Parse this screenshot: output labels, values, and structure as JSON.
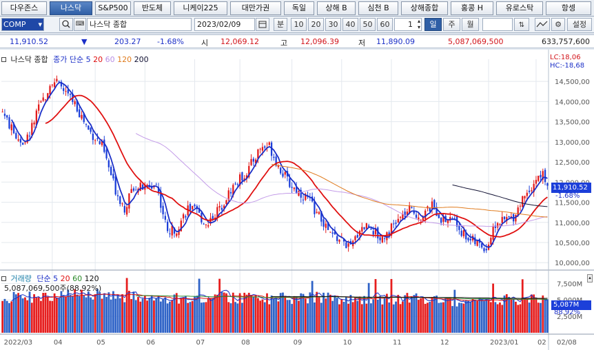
{
  "tabs": [
    {
      "label": "다우존스",
      "active": false
    },
    {
      "label": "나스닥",
      "active": true
    },
    {
      "label": "S&P500",
      "active": false
    },
    {
      "label": "반도체",
      "active": false
    },
    {
      "label": "니케이225",
      "active": false
    },
    {
      "label": "대만가권",
      "active": false
    },
    {
      "label": "독일",
      "active": false
    },
    {
      "label": "상해 B",
      "active": false
    },
    {
      "label": "심천 B",
      "active": false
    },
    {
      "label": "상해종합",
      "active": false
    },
    {
      "label": "홍콩 H",
      "active": false
    },
    {
      "label": "유로스탁",
      "active": false
    },
    {
      "label": "항셍",
      "active": false
    }
  ],
  "toolbar": {
    "symbol_code": "COMP",
    "search_icon": "search-icon",
    "symbol_name": "나스닥 종합",
    "date": "2023/02/09",
    "calendar_icon": "calendar-icon",
    "unit_minute": "분",
    "minutes": [
      "10",
      "20",
      "30",
      "40",
      "50",
      "60"
    ],
    "count": "1",
    "periods": [
      {
        "label": "일",
        "selected": true
      },
      {
        "label": "주",
        "selected": false
      },
      {
        "label": "월",
        "selected": false
      }
    ],
    "settings_label": "설정"
  },
  "quote": {
    "price": "11,910.52",
    "change_arrow": "▼",
    "change": "203.27",
    "change_pct": "-1.68%",
    "open_label": "시",
    "open": "12,069.12",
    "high_label": "고",
    "high": "12,096.39",
    "low_label": "저",
    "low": "11,890.09",
    "volume": "5,087,069,500",
    "amount": "633,757,600"
  },
  "legend": {
    "name": "나스닥 종합",
    "ma_label": "종가 단순 5",
    "ma_periods": [
      "20",
      "60",
      "120",
      "200"
    ],
    "lc": "LC:18,06",
    "hc": "HC:-18,68",
    "last_price_tag": "11,910.52",
    "last_pct_tag": "-1.68%"
  },
  "volume_legend": {
    "title": "거래량",
    "ma_label": "단순 5",
    "ma_periods": [
      "20",
      "60",
      "120"
    ],
    "value_line": "5,087,069,500주(88,92%)",
    "tag_value": "5,087M",
    "tag_pct": "88.92%"
  },
  "colors": {
    "up": "#e31b1b",
    "down": "#1c3fd9",
    "ma5": "#1b2fc7",
    "ma20": "#e01010",
    "ma60": "#c39be8",
    "ma120": "#e07b1d",
    "ma200": "#111133",
    "vol_up": "#e61e1e",
    "vol_down": "#2f63c7"
  },
  "chart_data": {
    "type": "candlestick",
    "title": "나스닥 종합",
    "y_price_ticks": [
      10000,
      10500,
      11000,
      11500,
      12000,
      12500,
      13000,
      13500,
      14000,
      14500
    ],
    "y_price_tick_labels": [
      "10,000,00",
      "10,500,00",
      "11,000,00",
      "11,500,00",
      "12,000,00",
      "12,500,00",
      "13,000,00",
      "13,500,00",
      "14,000,00",
      "14,500,00"
    ],
    "ylim_price": [
      9850,
      15050
    ],
    "y_volume_ticks": [
      2500,
      5000,
      7500
    ],
    "y_volume_tick_labels": [
      "2,500M",
      "5,000M",
      "7,500M"
    ],
    "ylim_volume_millions": [
      0,
      9000
    ],
    "x_labels": [
      "2022/03",
      "04",
      "05",
      "06",
      "07",
      "08",
      "09",
      "10",
      "11",
      "12",
      "2023/01",
      "02",
      "02/08"
    ],
    "x_label_day_index": [
      0,
      22,
      41,
      63,
      85,
      105,
      128,
      150,
      172,
      193,
      215,
      236,
      241
    ],
    "num_days": 241,
    "anchors": [
      [
        0,
        13750
      ],
      [
        5,
        13200
      ],
      [
        10,
        12950
      ],
      [
        16,
        13800
      ],
      [
        22,
        14550
      ],
      [
        26,
        14350
      ],
      [
        32,
        13950
      ],
      [
        38,
        13300
      ],
      [
        44,
        12900
      ],
      [
        50,
        11800
      ],
      [
        54,
        11350
      ],
      [
        58,
        11900
      ],
      [
        63,
        11850
      ],
      [
        68,
        11950
      ],
      [
        73,
        10750
      ],
      [
        77,
        10850
      ],
      [
        82,
        11350
      ],
      [
        86,
        11250
      ],
      [
        90,
        10950
      ],
      [
        96,
        11350
      ],
      [
        102,
        11900
      ],
      [
        108,
        12250
      ],
      [
        114,
        12850
      ],
      [
        118,
        12900
      ],
      [
        122,
        12400
      ],
      [
        127,
        11950
      ],
      [
        131,
        11750
      ],
      [
        135,
        11600
      ],
      [
        140,
        11150
      ],
      [
        145,
        10700
      ],
      [
        150,
        10550
      ],
      [
        154,
        10350
      ],
      [
        158,
        10850
      ],
      [
        162,
        10950
      ],
      [
        167,
        10600
      ],
      [
        171,
        10800
      ],
      [
        175,
        11050
      ],
      [
        180,
        11300
      ],
      [
        185,
        11150
      ],
      [
        190,
        11400
      ],
      [
        195,
        11050
      ],
      [
        199,
        11100
      ],
      [
        204,
        10700
      ],
      [
        209,
        10500
      ],
      [
        214,
        10350
      ],
      [
        218,
        10950
      ],
      [
        222,
        11050
      ],
      [
        226,
        11150
      ],
      [
        231,
        11700
      ],
      [
        236,
        12050
      ],
      [
        239,
        12200
      ],
      [
        241,
        11910
      ]
    ],
    "volume_anchors": [
      [
        0,
        5200
      ],
      [
        20,
        5400
      ],
      [
        40,
        5800
      ],
      [
        60,
        5300
      ],
      [
        80,
        5000
      ],
      [
        100,
        5300
      ],
      [
        120,
        5100
      ],
      [
        140,
        5300
      ],
      [
        160,
        4900
      ],
      [
        180,
        5200
      ],
      [
        200,
        4800
      ],
      [
        220,
        5000
      ],
      [
        241,
        5087
      ]
    ],
    "ma_periods": [
      5,
      20,
      60,
      120,
      200
    ],
    "last_close": 11910.52,
    "last_volume_millions": 5087
  }
}
